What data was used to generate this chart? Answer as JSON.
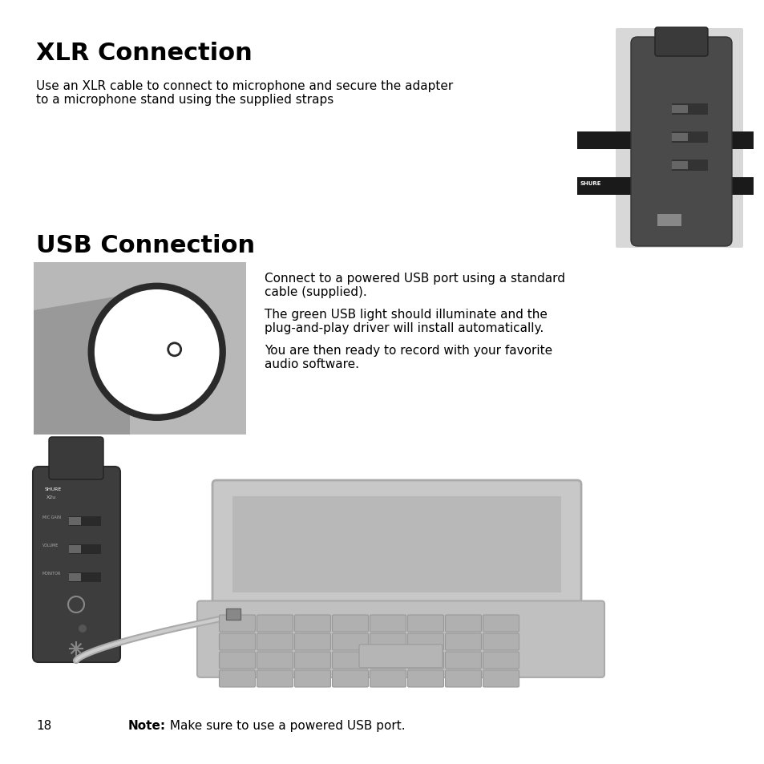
{
  "title_xlr": "XLR Connection",
  "title_usb": "USB Connection",
  "xlr_body": "Use an XLR cable to connect to microphone and secure the adapter\nto a microphone stand using the supplied straps",
  "usb_para1": "Connect to a powered USB port using a standard\ncable (supplied).",
  "usb_para2": "The green USB light should illuminate and the\nplug-and-play driver will install automatically.",
  "usb_para3": "You are then ready to record with your favorite\naudio software.",
  "note_text": "Make sure to use a powered USB port.",
  "page_num": "18",
  "bg_color": "#ffffff",
  "text_color": "#000000",
  "title_fontsize": 22,
  "body_fontsize": 11,
  "note_fontsize": 11
}
